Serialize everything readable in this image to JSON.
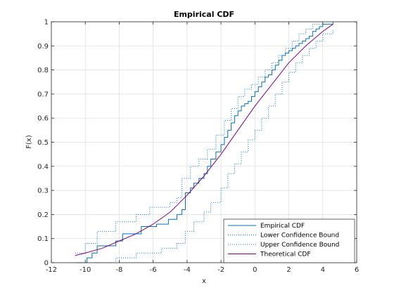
{
  "chart_data": {
    "type": "line",
    "title": "Empirical CDF",
    "xlabel": "x",
    "ylabel": "F(x)",
    "xlim": [
      -12,
      6
    ],
    "ylim": [
      0,
      1
    ],
    "xticks": [
      "-12",
      "-10",
      "-8",
      "-6",
      "-4",
      "-2",
      "0",
      "2",
      "4",
      "6"
    ],
    "yticks": [
      "0",
      "0.1",
      "0.2",
      "0.3",
      "0.4",
      "0.5",
      "0.6",
      "0.7",
      "0.8",
      "0.9",
      "1"
    ],
    "grid": true,
    "legend_position": "bottom-right",
    "series": [
      {
        "name": "Empirical CDF",
        "style": "stairs",
        "color": "#0072BD",
        "x": [
          -10.6,
          -9.9,
          -9.6,
          -9.3,
          -8.2,
          -7.8,
          -6.7,
          -5.8,
          -5.1,
          -4.6,
          -4.3,
          -4.1,
          -3.8,
          -3.6,
          -3.3,
          -3.0,
          -2.8,
          -2.6,
          -2.3,
          -2.0,
          -1.8,
          -1.6,
          -1.4,
          -1.2,
          -1.0,
          -0.8,
          -0.6,
          -0.4,
          -0.2,
          0.0,
          0.2,
          0.4,
          0.6,
          0.8,
          1.0,
          1.2,
          1.4,
          1.6,
          1.8,
          2.0,
          2.2,
          2.4,
          2.6,
          2.8,
          3.0,
          3.2,
          3.4,
          3.6,
          3.8,
          4.0,
          4.3,
          4.6
        ],
        "y": [
          0.0,
          0.02,
          0.04,
          0.07,
          0.09,
          0.12,
          0.15,
          0.16,
          0.18,
          0.2,
          0.22,
          0.29,
          0.31,
          0.33,
          0.35,
          0.37,
          0.4,
          0.43,
          0.46,
          0.49,
          0.52,
          0.55,
          0.58,
          0.61,
          0.63,
          0.65,
          0.66,
          0.67,
          0.69,
          0.71,
          0.73,
          0.75,
          0.77,
          0.78,
          0.8,
          0.82,
          0.84,
          0.86,
          0.87,
          0.88,
          0.89,
          0.9,
          0.91,
          0.92,
          0.93,
          0.94,
          0.96,
          0.97,
          0.98,
          0.99,
          0.99,
          1.0
        ]
      },
      {
        "name": "Lower Confidence Bound",
        "style": "stairs-dotted",
        "color": "#0072BD",
        "x": [
          -9.6,
          -8.2,
          -7.0,
          -5.5,
          -4.6,
          -4.1,
          -3.6,
          -3.0,
          -2.6,
          -2.0,
          -1.6,
          -1.2,
          -0.8,
          -0.4,
          0.0,
          0.4,
          0.8,
          1.2,
          1.6,
          2.0,
          2.4,
          2.8,
          3.2,
          3.6,
          4.0,
          4.6
        ],
        "y": [
          0.0,
          0.02,
          0.04,
          0.06,
          0.08,
          0.13,
          0.17,
          0.21,
          0.25,
          0.31,
          0.37,
          0.41,
          0.46,
          0.51,
          0.55,
          0.6,
          0.65,
          0.7,
          0.75,
          0.79,
          0.83,
          0.86,
          0.89,
          0.92,
          0.95,
          0.97
        ]
      },
      {
        "name": "Upper Confidence Bound",
        "style": "stairs-dotted",
        "color": "#0072BD",
        "x": [
          -10.6,
          -10.0,
          -9.3,
          -8.2,
          -7.0,
          -6.2,
          -5.0,
          -4.6,
          -4.3,
          -3.8,
          -3.3,
          -2.8,
          -2.3,
          -1.8,
          -1.4,
          -1.0,
          -0.6,
          -0.2,
          0.2,
          0.6,
          1.0,
          1.4,
          1.8,
          2.2,
          2.6,
          3.0,
          3.4,
          4.0
        ],
        "y": [
          0.04,
          0.08,
          0.13,
          0.17,
          0.2,
          0.23,
          0.25,
          0.27,
          0.35,
          0.4,
          0.43,
          0.47,
          0.53,
          0.59,
          0.64,
          0.69,
          0.72,
          0.74,
          0.77,
          0.8,
          0.83,
          0.86,
          0.89,
          0.92,
          0.95,
          0.97,
          0.99,
          1.0
        ]
      },
      {
        "name": "Theoretical CDF",
        "style": "line",
        "color": "#800080",
        "x": [
          -10.6,
          -10.0,
          -9.0,
          -8.0,
          -7.0,
          -6.0,
          -5.0,
          -4.0,
          -3.0,
          -2.0,
          -1.0,
          0.0,
          1.0,
          2.0,
          3.0,
          4.0,
          4.6
        ],
        "y": [
          0.03,
          0.04,
          0.06,
          0.09,
          0.12,
          0.16,
          0.21,
          0.28,
          0.36,
          0.45,
          0.55,
          0.65,
          0.74,
          0.83,
          0.9,
          0.96,
          0.99
        ]
      }
    ]
  }
}
